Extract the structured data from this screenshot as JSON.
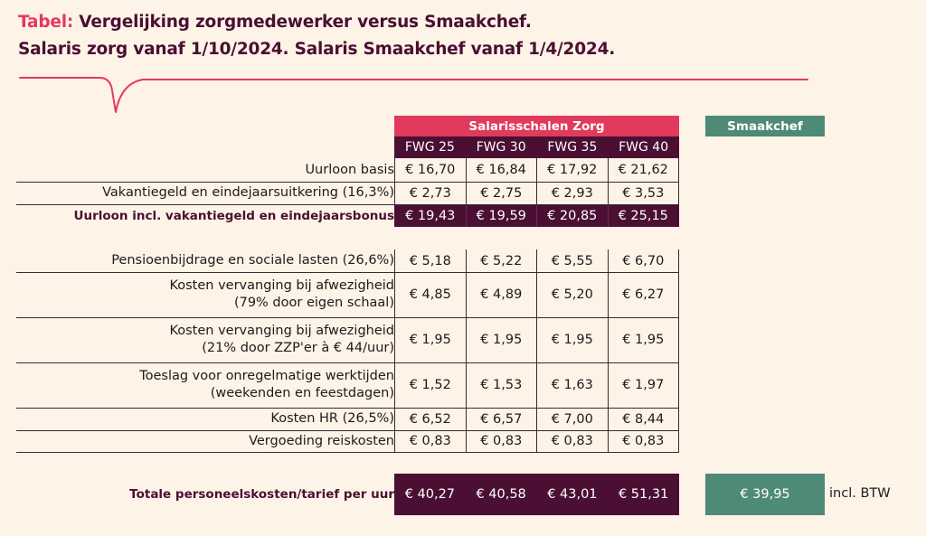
{
  "title": {
    "accent": "Tabel:",
    "line1": " Vergelijking zorgmedewerker versus Smaakchef.",
    "line2": "Salaris zorg vanaf 1/10/2024. Salaris Smaakchef vanaf 1/4/2024."
  },
  "colors": {
    "accent": "#e23a5c",
    "dark": "#4a0f33",
    "green": "#4e8a76",
    "background": "#fdf3e7"
  },
  "headers": {
    "group": "Salarisschalen Zorg",
    "smaakchef": "Smaakchef",
    "columns": [
      "FWG 25",
      "FWG 30",
      "FWG 35",
      "FWG 40"
    ]
  },
  "rows": [
    {
      "label": [
        "Uurloon basis"
      ],
      "values": [
        "€ 16,70",
        "€ 16,84",
        "€ 17,92",
        "€ 21,62"
      ]
    },
    {
      "label": [
        "Vakantiegeld en eindejaarsuitkering (16,3%)"
      ],
      "values": [
        "€ 2,73",
        "€ 2,75",
        "€ 2,93",
        "€ 3,53"
      ]
    },
    {
      "label": [
        "Uurloon incl. vakantiegeld en eindejaarsbonus"
      ],
      "values": [
        "€ 19,43",
        "€ 19,59",
        "€ 20,85",
        "€ 25,15"
      ]
    },
    {
      "label": [
        "Pensioenbijdrage en sociale lasten (26,6%)"
      ],
      "values": [
        "€ 5,18",
        "€ 5,22",
        "€ 5,55",
        "€ 6,70"
      ]
    },
    {
      "label": [
        "Kosten vervanging bij afwezigheid",
        "(79% door eigen schaal)"
      ],
      "values": [
        "€ 4,85",
        "€ 4,89",
        "€ 5,20",
        "€ 6,27"
      ]
    },
    {
      "label": [
        "Kosten vervanging bij afwezigheid",
        "(21% door ZZP'er à € 44/uur)"
      ],
      "values": [
        "€ 1,95",
        "€ 1,95",
        "€ 1,95",
        "€ 1,95"
      ]
    },
    {
      "label": [
        "Toeslag voor onregelmatige werktijden",
        "(weekenden en feestdagen)"
      ],
      "values": [
        "€ 1,52",
        "€ 1,53",
        "€ 1,63",
        "€ 1,97"
      ]
    },
    {
      "label": [
        "Kosten HR (26,5%)"
      ],
      "values": [
        "€ 6,52",
        "€ 6,57",
        "€ 7,00",
        "€ 8,44"
      ]
    },
    {
      "label": [
        "Vergoeding reiskosten"
      ],
      "values": [
        "€ 0,83",
        "€ 0,83",
        "€ 0,83",
        "€ 0,83"
      ]
    }
  ],
  "total": {
    "label": "Totale personeelskosten/tarief per uur",
    "values": [
      "€ 40,27",
      "€ 40,58",
      "€ 43,01",
      "€ 51,31"
    ],
    "smaakchef": "€ 39,95",
    "note": "incl. BTW"
  }
}
